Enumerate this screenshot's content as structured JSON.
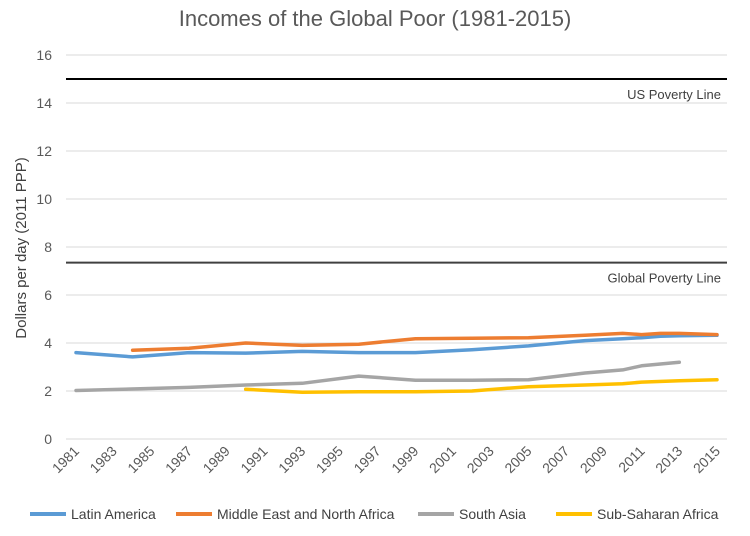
{
  "chart_data": {
    "type": "line",
    "title": "Incomes of the Global Poor (1981-2015)",
    "xlabel": "",
    "ylabel": "Dollars per day (2011 PPP)",
    "xlim": [
      1981,
      2015
    ],
    "ylim": [
      0,
      16
    ],
    "yticks": [
      0,
      2,
      4,
      6,
      8,
      10,
      12,
      14,
      16
    ],
    "xticks": [
      "1981",
      "1983",
      "1985",
      "1987",
      "1989",
      "1991",
      "1993",
      "1995",
      "1997",
      "1999",
      "2001",
      "2003",
      "2005",
      "2007",
      "2009",
      "2011",
      "2013",
      "2015"
    ],
    "grid": true,
    "legend_position": "bottom",
    "reference_lines": [
      {
        "label": "US Poverty Line",
        "value": 15,
        "color": "#000000"
      },
      {
        "label": "Global Poverty Line",
        "value": 7.35,
        "color": "#404040"
      }
    ],
    "series": [
      {
        "name": "Latin America",
        "color": "#5B9BD5",
        "x": [
          1981,
          1984,
          1987,
          1990,
          1993,
          1996,
          1999,
          2002,
          2005,
          2008,
          2010,
          2011,
          2012,
          2013,
          2015
        ],
        "y": [
          3.6,
          3.42,
          3.6,
          3.58,
          3.65,
          3.6,
          3.6,
          3.72,
          3.88,
          4.1,
          4.18,
          4.22,
          4.28,
          4.3,
          4.32
        ]
      },
      {
        "name": "Middle East and North Africa",
        "color": "#ED7D31",
        "x": [
          1984,
          1987,
          1990,
          1993,
          1996,
          1999,
          2002,
          2005,
          2008,
          2010,
          2011,
          2012,
          2013,
          2015
        ],
        "y": [
          3.7,
          3.78,
          4.0,
          3.9,
          3.95,
          4.18,
          4.2,
          4.22,
          4.32,
          4.4,
          4.35,
          4.4,
          4.4,
          4.35
        ]
      },
      {
        "name": "South Asia",
        "color": "#A5A5A5",
        "x": [
          1981,
          1987,
          1990,
          1993,
          1996,
          1999,
          2002,
          2005,
          2008,
          2010,
          2011,
          2013
        ],
        "y": [
          2.02,
          2.15,
          2.25,
          2.32,
          2.62,
          2.45,
          2.45,
          2.47,
          2.75,
          2.88,
          3.05,
          3.2
        ]
      },
      {
        "name": "Sub-Saharan Africa",
        "color": "#FFC000",
        "x": [
          1990,
          1993,
          1996,
          1999,
          2002,
          2005,
          2008,
          2010,
          2011,
          2013,
          2015
        ],
        "y": [
          2.07,
          1.95,
          1.97,
          1.97,
          2.0,
          2.18,
          2.25,
          2.3,
          2.37,
          2.43,
          2.47
        ]
      }
    ]
  }
}
